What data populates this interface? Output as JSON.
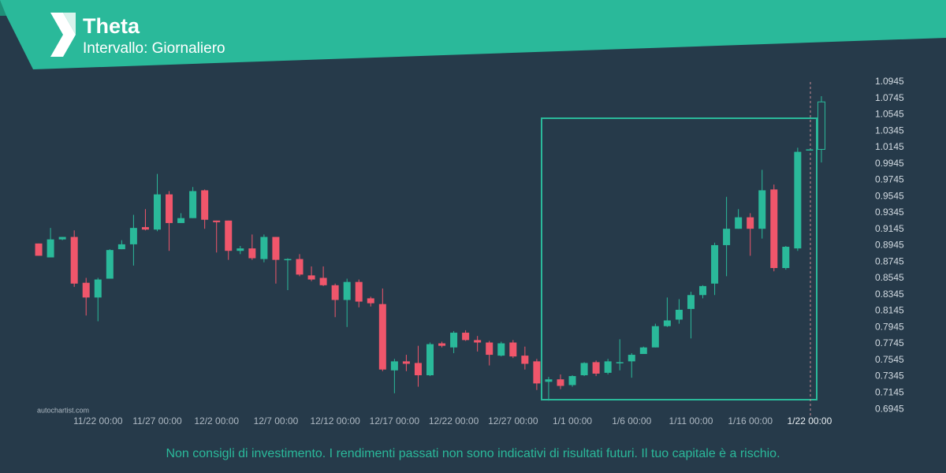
{
  "header": {
    "title": "Theta",
    "subtitle": "Intervallo: Giornaliero"
  },
  "chart_data": {
    "type": "candlestick",
    "up_color": "#2ab99a",
    "down_color": "#f0566b",
    "open": [
      0.897,
      0.88,
      0.902,
      0.905,
      0.849,
      0.831,
      0.854,
      0.89,
      0.896,
      0.917,
      0.914,
      0.957,
      0.922,
      0.928,
      0.962,
      0.925,
      0.925,
      0.888,
      0.891,
      0.878,
      0.905,
      0.878,
      0.878,
      0.858,
      0.855,
      0.846,
      0.828,
      0.85,
      0.83,
      0.823,
      0.742,
      0.753,
      0.751,
      0.736,
      0.775,
      0.77,
      0.788,
      0.779,
      0.776,
      0.76,
      0.776,
      0.76,
      0.753,
      0.728,
      0.731,
      0.724,
      0.736,
      0.752,
      0.739,
      0.752,
      0.753,
      0.762,
      0.77,
      0.796,
      0.804,
      0.817,
      0.834,
      0.848,
      0.895,
      0.915,
      0.929,
      0.915,
      0.963,
      0.867,
      0.891,
      1.012,
      1.012
    ],
    "high": [
      0.897,
      0.916,
      0.905,
      0.913,
      0.855,
      0.855,
      0.89,
      0.901,
      0.932,
      0.939,
      0.982,
      0.961,
      0.934,
      0.966,
      0.963,
      0.925,
      0.925,
      0.894,
      0.908,
      0.908,
      0.905,
      0.879,
      0.884,
      0.869,
      0.869,
      0.848,
      0.854,
      0.853,
      0.832,
      0.842,
      0.756,
      0.761,
      0.772,
      0.776,
      0.777,
      0.79,
      0.791,
      0.784,
      0.778,
      0.777,
      0.779,
      0.771,
      0.756,
      0.734,
      0.737,
      0.736,
      0.752,
      0.754,
      0.756,
      0.78,
      0.763,
      0.771,
      0.799,
      0.831,
      0.829,
      0.838,
      0.846,
      0.898,
      0.954,
      0.939,
      0.934,
      0.987,
      0.969,
      0.894,
      1.014,
      1.012,
      1.077
    ],
    "low": [
      0.882,
      0.88,
      0.901,
      0.844,
      0.809,
      0.802,
      0.854,
      0.89,
      0.87,
      0.913,
      0.912,
      0.888,
      0.922,
      0.928,
      0.915,
      0.886,
      0.877,
      0.884,
      0.877,
      0.874,
      0.848,
      0.84,
      0.857,
      0.851,
      0.845,
      0.807,
      0.795,
      0.819,
      0.82,
      0.741,
      0.714,
      0.741,
      0.722,
      0.735,
      0.77,
      0.763,
      0.778,
      0.765,
      0.748,
      0.759,
      0.757,
      0.743,
      0.718,
      0.705,
      0.719,
      0.722,
      0.735,
      0.735,
      0.737,
      0.742,
      0.733,
      0.762,
      0.77,
      0.795,
      0.799,
      0.781,
      0.83,
      0.834,
      0.857,
      0.915,
      0.882,
      0.903,
      0.863,
      0.865,
      0.888,
      1.012,
      0.996
    ],
    "close": [
      0.882,
      0.902,
      0.905,
      0.848,
      0.831,
      0.853,
      0.889,
      0.896,
      0.916,
      0.914,
      0.957,
      0.922,
      0.928,
      0.961,
      0.926,
      0.923,
      0.888,
      0.891,
      0.879,
      0.905,
      0.877,
      0.878,
      0.859,
      0.853,
      0.846,
      0.828,
      0.85,
      0.826,
      0.824,
      0.743,
      0.753,
      0.75,
      0.736,
      0.774,
      0.772,
      0.788,
      0.779,
      0.776,
      0.761,
      0.775,
      0.759,
      0.75,
      0.726,
      0.731,
      0.723,
      0.735,
      0.751,
      0.738,
      0.753,
      0.752,
      0.761,
      0.77,
      0.796,
      0.803,
      0.816,
      0.834,
      0.845,
      0.895,
      0.915,
      0.929,
      0.915,
      0.962,
      0.867,
      0.893,
      1.009,
      1.012,
      1.07
    ],
    "xlim": [
      -1,
      67
    ],
    "xticks": [
      {
        "value": 5,
        "label": "11/22 00:00"
      },
      {
        "value": 10,
        "label": "11/27 00:00"
      },
      {
        "value": 15,
        "label": "12/2 00:00"
      },
      {
        "value": 20,
        "label": "12/7 00:00"
      },
      {
        "value": 25,
        "label": "12/12 00:00"
      },
      {
        "value": 30,
        "label": "12/17 00:00"
      },
      {
        "value": 35,
        "label": "12/22 00:00"
      },
      {
        "value": 40,
        "label": "12/27 00:00"
      },
      {
        "value": 45,
        "label": "1/1 00:00"
      },
      {
        "value": 50,
        "label": "1/6 00:00"
      },
      {
        "value": 55,
        "label": "1/11 00:00"
      },
      {
        "value": 60,
        "label": "1/16 00:00"
      },
      {
        "value": 65,
        "label": "1/22 00:00"
      }
    ],
    "ylim": [
      0.684,
      1.103
    ],
    "yticks": [
      0.6945,
      0.7145,
      0.7345,
      0.7545,
      0.7745,
      0.7945,
      0.8145,
      0.8345,
      0.8545,
      0.8745,
      0.8945,
      0.9145,
      0.9345,
      0.9545,
      0.9745,
      0.9945,
      1.0145,
      1.0345,
      1.0545,
      1.0745,
      1.0945
    ]
  },
  "watermark": "autochartist.com",
  "footer": {
    "disclaimer": "Non consigli di investimento. I rendimenti passati non sono indicativi di risultati futuri. Il tuo capitale è a rischio."
  }
}
